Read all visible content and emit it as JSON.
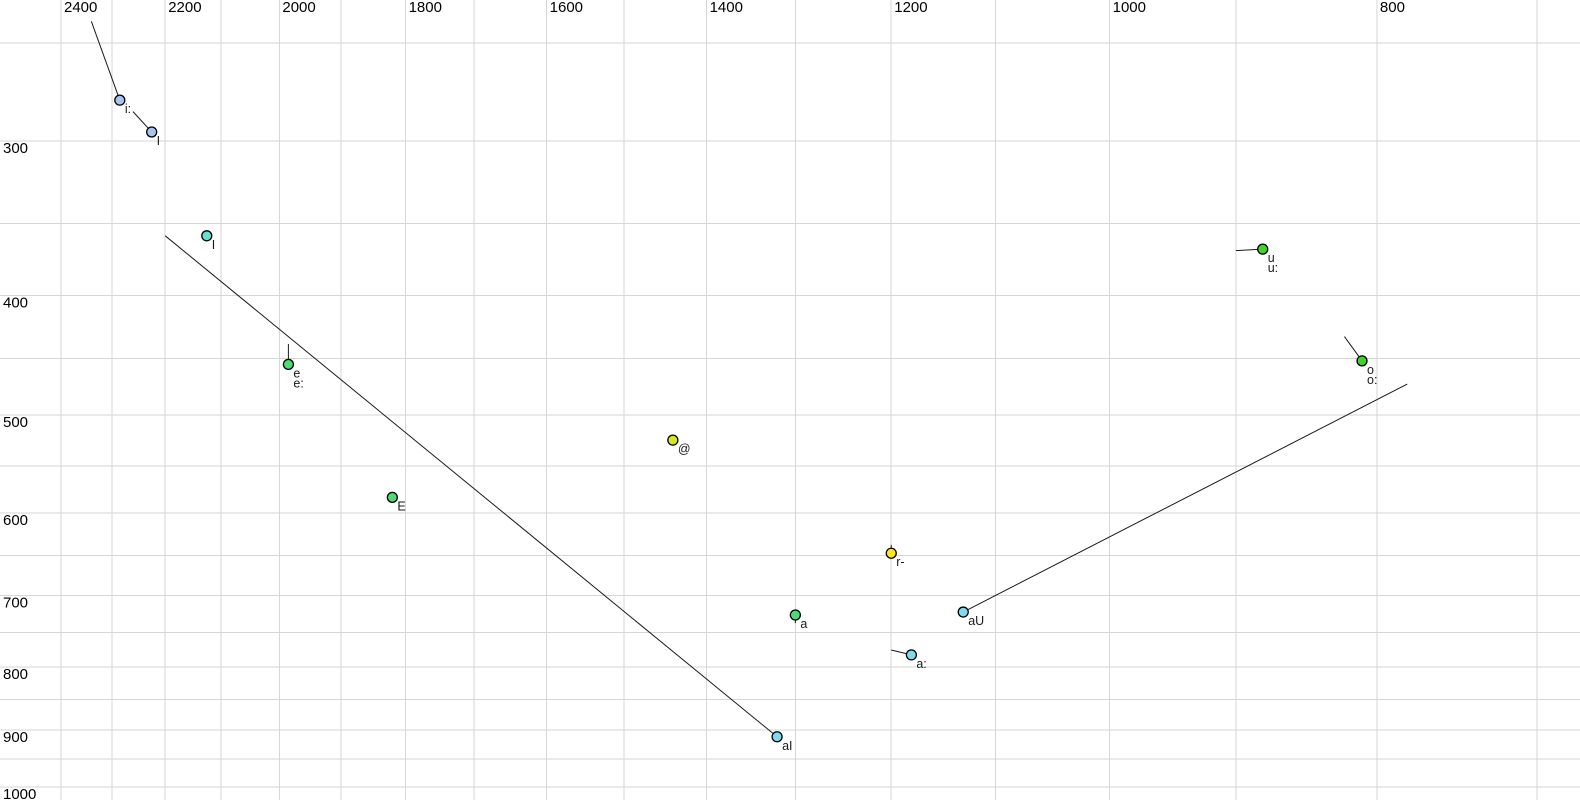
{
  "chart_data": {
    "type": "scatter",
    "title": "",
    "description": "Vowel formant chart: F2 (Hz) on horizontal axis decreasing to the right, F1 (Hz) on vertical axis increasing downward, both log-scaled; dots mark vowel targets, thin lines mark formant glide trajectories",
    "x_axis": {
      "tick_labels": [
        "2400",
        "2200",
        "2000",
        "1800",
        "1600",
        "1400",
        "1200",
        "1000",
        "800"
      ],
      "tick_values": [
        2400,
        2200,
        2000,
        1800,
        1600,
        1400,
        1200,
        1000,
        800
      ],
      "gridline_values": [
        2400,
        2300,
        2200,
        2100,
        2000,
        1900,
        1800,
        1700,
        1600,
        1500,
        1400,
        1300,
        1200,
        1100,
        1000,
        900,
        800,
        700
      ],
      "scale": "log",
      "direction": "decreasing-rightward",
      "visible_range": [
        2525,
        675
      ],
      "ticks_position": "top"
    },
    "y_axis": {
      "tick_labels": [
        "300",
        "400",
        "500",
        "600",
        "700",
        "800",
        "900",
        "1000"
      ],
      "tick_values": [
        300,
        400,
        500,
        600,
        700,
        800,
        900,
        1000
      ],
      "gridline_values": [
        250,
        300,
        350,
        400,
        450,
        500,
        550,
        600,
        650,
        700,
        750,
        800,
        850,
        900,
        950,
        1000
      ],
      "scale": "log",
      "direction": "increasing-downward",
      "visible_range": [
        230,
        1025
      ],
      "ticks_position": "left"
    },
    "grid": true,
    "legend": false,
    "points": [
      {
        "labels": [
          "i:"
        ],
        "f2": 2285,
        "f1": 278,
        "color": "#a9c3ef",
        "glide": {
          "f2": 2340,
          "f1": 240
        }
      },
      {
        "labels": [
          "I"
        ],
        "f2": 2225,
        "f1": 295,
        "color": "#a9c3ef",
        "glide": {
          "f2": 2260,
          "f1": 284
        }
      },
      {
        "labels": [
          "I"
        ],
        "f2": 2125,
        "f1": 358,
        "color": "#63e2d1",
        "glide": null
      },
      {
        "labels": [
          "e",
          "e:"
        ],
        "f2": 1985,
        "f1": 455,
        "color": "#4fdb74",
        "glide": {
          "f2": 1985,
          "f1": 438
        }
      },
      {
        "labels": [
          "E"
        ],
        "f2": 1820,
        "f1": 583,
        "color": "#4fdb74",
        "glide": null
      },
      {
        "labels": [
          "@"
        ],
        "f2": 1440,
        "f1": 524,
        "color": "#d3e821",
        "glide": null
      },
      {
        "labels": [
          "r-"
        ],
        "f2": 1200,
        "f1": 647,
        "color": "#ffe619",
        "glide": {
          "f2": 1200,
          "f1": 637
        }
      },
      {
        "labels": [
          "a"
        ],
        "f2": 1300,
        "f1": 726,
        "color": "#4fdb74",
        "glide": {
          "f2": 1300,
          "f1": 737
        }
      },
      {
        "labels": [
          "a:"
        ],
        "f2": 1180,
        "f1": 782,
        "color": "#80d9ec",
        "glide": {
          "f2": 1200,
          "f1": 775
        }
      },
      {
        "labels": [
          "aI"
        ],
        "f2": 1320,
        "f1": 911,
        "color": "#80d9ec",
        "glide": {
          "f2": 2200,
          "f1": 358
        }
      },
      {
        "labels": [
          "aU"
        ],
        "f2": 1130,
        "f1": 722,
        "color": "#80d9ec",
        "glide": {
          "f2": 780,
          "f1": 472
        }
      },
      {
        "labels": [
          "u",
          "u:"
        ],
        "f2": 880,
        "f1": 367,
        "color": "#3fd32c",
        "glide": {
          "f2": 900,
          "f1": 368
        }
      },
      {
        "labels": [
          "o",
          "o:"
        ],
        "f2": 810,
        "f1": 452,
        "color": "#3fd32c",
        "glide": {
          "f2": 822,
          "f1": 432
        }
      }
    ]
  },
  "colors": {
    "background": "#ffffff",
    "grid": "#d6d6d6",
    "trajectory_line": "#1a1a1a",
    "point_outline": "#000000",
    "tick_text": "#000000",
    "label_text": "#1a1a1a"
  }
}
